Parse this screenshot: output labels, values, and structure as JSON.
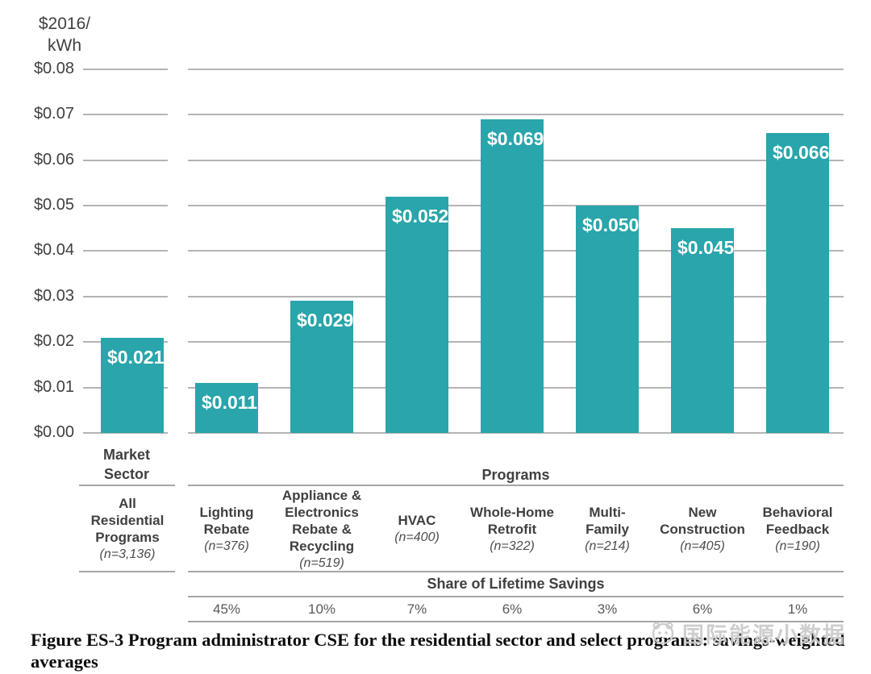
{
  "chart_data": {
    "type": "bar",
    "unit_label": "$2016/\nkWh",
    "ylim": [
      0,
      0.08
    ],
    "ytick_step": 0.01,
    "yticks": [
      "$0.00",
      "$0.01",
      "$0.02",
      "$0.03",
      "$0.04",
      "$0.05",
      "$0.06",
      "$0.07",
      "$0.08"
    ],
    "bar_color": "#29a5ab",
    "grid_color": "#b4b4b4",
    "groups": [
      {
        "header": "Market\nSector",
        "columns": [
          {
            "label": "All\nResidential\nPrograms",
            "n_label": "(n=3,136)",
            "value": 0.021,
            "value_label": "$0.021"
          }
        ]
      },
      {
        "header": "Programs",
        "share_header": "Share of Lifetime Savings",
        "columns": [
          {
            "label": "Lighting\nRebate",
            "n_label": "(n=376)",
            "value": 0.011,
            "value_label": "$0.011",
            "share": "45%"
          },
          {
            "label": "Appliance &\nElectronics\nRebate &\nRecycling",
            "n_label": "(n=519)",
            "value": 0.029,
            "value_label": "$0.029",
            "share": "10%"
          },
          {
            "label": "HVAC",
            "n_label": "(n=400)",
            "value": 0.052,
            "value_label": "$0.052",
            "share": "7%"
          },
          {
            "label": "Whole-Home\nRetrofit",
            "n_label": "(n=322)",
            "value": 0.069,
            "value_label": "$0.069",
            "share": "6%"
          },
          {
            "label": "Multi-\nFamily",
            "n_label": "(n=214)",
            "value": 0.05,
            "value_label": "$0.050",
            "share": "3%"
          },
          {
            "label": "New\nConstruction",
            "n_label": "(n=405)",
            "value": 0.045,
            "value_label": "$0.045",
            "share": "6%"
          },
          {
            "label": "Behavioral\nFeedback",
            "n_label": "(n=190)",
            "value": 0.066,
            "value_label": "$0.066",
            "share": "1%"
          }
        ]
      }
    ]
  },
  "caption": "Figure ES-3 Program administrator CSE for the residential sector and select programs: savings-weighted averages",
  "watermark": "国际能源小数据"
}
